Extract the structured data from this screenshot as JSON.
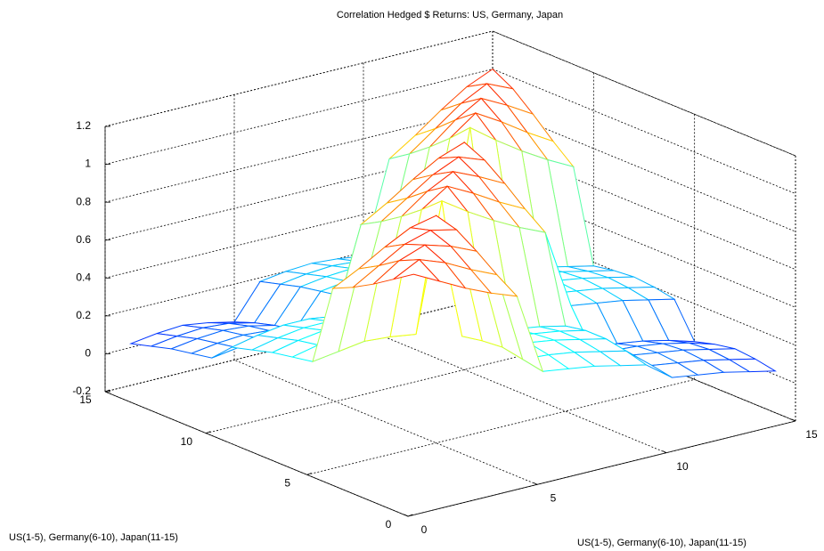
{
  "chart_data": {
    "type": "mesh",
    "title": "Correlation Hedged $ Returns: US, Germany, Japan",
    "x_label": "US(1-5), Germany(6-10), Japan(11-15)",
    "y_label": "US(1-5), Germany(6-10), Japan(11-15)",
    "x": [
      1,
      2,
      3,
      4,
      5,
      6,
      7,
      8,
      9,
      10,
      11,
      12,
      13,
      14,
      15
    ],
    "y": [
      1,
      2,
      3,
      4,
      5,
      6,
      7,
      8,
      9,
      10,
      11,
      12,
      13,
      14,
      15
    ],
    "z": [
      [
        1.0,
        0.93,
        0.86,
        0.8,
        0.75,
        0.32,
        0.3,
        0.28,
        0.25,
        0.22,
        0.12,
        0.1,
        0.08,
        0.05,
        0.02
      ],
      [
        0.93,
        1.0,
        0.95,
        0.88,
        0.82,
        0.34,
        0.33,
        0.31,
        0.28,
        0.25,
        0.14,
        0.12,
        0.1,
        0.07,
        0.04
      ],
      [
        0.86,
        0.95,
        1.0,
        0.96,
        0.9,
        0.36,
        0.35,
        0.33,
        0.3,
        0.27,
        0.15,
        0.13,
        0.11,
        0.08,
        0.05
      ],
      [
        0.8,
        0.88,
        0.96,
        1.0,
        0.97,
        0.35,
        0.34,
        0.32,
        0.3,
        0.27,
        0.13,
        0.12,
        0.1,
        0.07,
        0.03
      ],
      [
        0.75,
        0.82,
        0.9,
        0.97,
        1.0,
        0.33,
        0.32,
        0.3,
        0.28,
        0.25,
        0.1,
        0.09,
        0.07,
        0.04,
        0.0
      ],
      [
        0.32,
        0.34,
        0.36,
        0.35,
        0.33,
        1.0,
        0.91,
        0.83,
        0.76,
        0.7,
        0.28,
        0.26,
        0.24,
        0.21,
        0.18
      ],
      [
        0.3,
        0.33,
        0.35,
        0.34,
        0.32,
        0.91,
        1.0,
        0.93,
        0.85,
        0.78,
        0.3,
        0.28,
        0.26,
        0.23,
        0.2
      ],
      [
        0.28,
        0.31,
        0.33,
        0.32,
        0.3,
        0.83,
        0.93,
        1.0,
        0.94,
        0.87,
        0.31,
        0.29,
        0.27,
        0.24,
        0.21
      ],
      [
        0.25,
        0.28,
        0.3,
        0.3,
        0.28,
        0.76,
        0.85,
        0.94,
        1.0,
        0.95,
        0.29,
        0.28,
        0.26,
        0.23,
        0.2
      ],
      [
        0.22,
        0.25,
        0.27,
        0.27,
        0.25,
        0.7,
        0.78,
        0.87,
        0.95,
        1.0,
        0.27,
        0.26,
        0.24,
        0.21,
        0.18
      ],
      [
        0.12,
        0.14,
        0.15,
        0.13,
        0.1,
        0.28,
        0.3,
        0.31,
        0.29,
        0.27,
        1.0,
        0.9,
        0.81,
        0.73,
        0.66
      ],
      [
        0.1,
        0.12,
        0.13,
        0.12,
        0.09,
        0.26,
        0.28,
        0.29,
        0.28,
        0.26,
        0.9,
        1.0,
        0.92,
        0.83,
        0.75
      ],
      [
        0.08,
        0.1,
        0.11,
        0.1,
        0.07,
        0.24,
        0.26,
        0.27,
        0.26,
        0.24,
        0.81,
        0.92,
        1.0,
        0.93,
        0.85
      ],
      [
        0.05,
        0.07,
        0.08,
        0.07,
        0.04,
        0.21,
        0.23,
        0.24,
        0.23,
        0.21,
        0.73,
        0.83,
        0.93,
        1.0,
        0.94
      ],
      [
        0.02,
        0.04,
        0.05,
        0.03,
        0.0,
        0.18,
        0.2,
        0.21,
        0.2,
        0.18,
        0.66,
        0.75,
        0.85,
        0.94,
        1.0
      ]
    ],
    "xlim": [
      0,
      15
    ],
    "ylim": [
      0,
      15
    ],
    "zlim": [
      -0.2,
      1.2
    ],
    "xticks": [
      0,
      5,
      10,
      15
    ],
    "yticks": [
      0,
      5,
      10,
      15
    ],
    "zticks": [
      {
        "value": -0.2,
        "label": "-0.2"
      },
      0,
      0.2,
      0.4,
      0.6,
      0.8,
      1,
      1.2
    ],
    "grid": true,
    "colormap": "jet"
  }
}
